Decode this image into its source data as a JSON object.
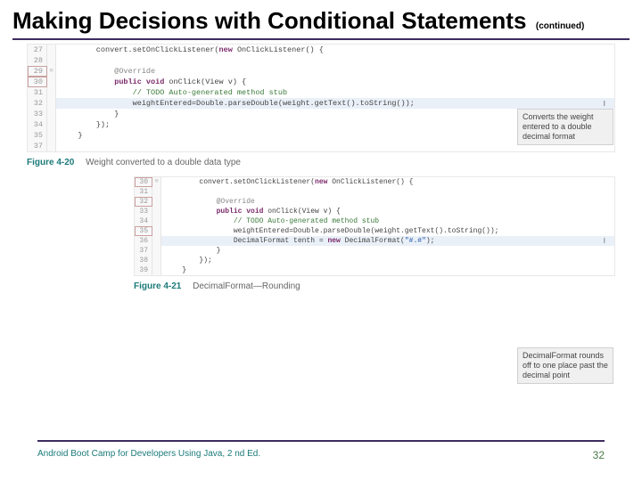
{
  "title": {
    "main": "Making Decisions with Conditional Statements",
    "continued": "(continued)"
  },
  "colors": {
    "underline": "#3d2c61",
    "caption_accent": "#1b7a7a",
    "highlight_bg": "#eaf0f8",
    "callout_bg": "#f0f0f0",
    "gutter_bg": "#f8f8f8"
  },
  "figure1": {
    "lines": [
      {
        "n": "27",
        "marker": "",
        "boxed": false,
        "hl": false,
        "text": "        convert.setOnClickListener(new OnClickListener() {"
      },
      {
        "n": "28",
        "marker": "",
        "boxed": false,
        "hl": false,
        "text": ""
      },
      {
        "n": "29",
        "marker": "⊖",
        "boxed": true,
        "hl": false,
        "text": "            @Override",
        "cls": "ann"
      },
      {
        "n": "30",
        "marker": "",
        "boxed": true,
        "hl": false,
        "text": "            public void onClick(View v) {",
        "cls": "kw"
      },
      {
        "n": "31",
        "marker": "",
        "boxed": false,
        "hl": false,
        "text": "                // TODO Auto-generated method stub",
        "cls": "cmt"
      },
      {
        "n": "32",
        "marker": "",
        "boxed": false,
        "hl": true,
        "text": "                weightEntered=Double.parseDouble(weight.getText().toString());",
        "cursor": "I"
      },
      {
        "n": "33",
        "marker": "",
        "boxed": false,
        "hl": false,
        "text": "            }"
      },
      {
        "n": "34",
        "marker": "",
        "boxed": false,
        "hl": false,
        "text": "        });"
      },
      {
        "n": "35",
        "marker": "",
        "boxed": false,
        "hl": false,
        "text": "    }"
      },
      {
        "n": "37",
        "marker": "",
        "boxed": false,
        "hl": false,
        "text": ""
      }
    ],
    "callout": "Converts the weight entered to a double decimal format",
    "caption_num": "Figure 4-20",
    "caption_text": "Weight converted to a double data type"
  },
  "figure2": {
    "lines": [
      {
        "n": "30",
        "marker": "⊖",
        "boxed": true,
        "hl": false,
        "text": "        convert.setOnClickListener(new OnClickListener() {"
      },
      {
        "n": "31",
        "marker": "",
        "boxed": false,
        "hl": false,
        "text": ""
      },
      {
        "n": "32",
        "marker": "",
        "boxed": true,
        "hl": false,
        "text": "            @Override",
        "cls": "ann"
      },
      {
        "n": "33",
        "marker": "",
        "boxed": false,
        "hl": false,
        "text": "            public void onClick(View v) {",
        "cls": "kw"
      },
      {
        "n": "34",
        "marker": "",
        "boxed": false,
        "hl": false,
        "text": "                // TODO Auto-generated method stub",
        "cls": "cmt"
      },
      {
        "n": "35",
        "marker": "",
        "boxed": true,
        "hl": false,
        "text": "                weightEntered=Double.parseDouble(weight.getText().toString());"
      },
      {
        "n": "36",
        "marker": "",
        "boxed": false,
        "hl": true,
        "text": "                DecimalFormat tenth = new DecimalFormat(\"#.#\");",
        "cursor": "I"
      },
      {
        "n": "37",
        "marker": "",
        "boxed": false,
        "hl": false,
        "text": "            }"
      },
      {
        "n": "38",
        "marker": "",
        "boxed": false,
        "hl": false,
        "text": "        });"
      },
      {
        "n": "39",
        "marker": "",
        "boxed": false,
        "hl": false,
        "text": "    }"
      }
    ],
    "callout": "DecimalFormat rounds off to one place past the decimal point",
    "caption_num": "Figure 4-21",
    "caption_text": "DecimalFormat—Rounding"
  },
  "footer": {
    "book": "Android Boot Camp for Developers Using Java, 2 nd Ed.",
    "page": "32"
  }
}
